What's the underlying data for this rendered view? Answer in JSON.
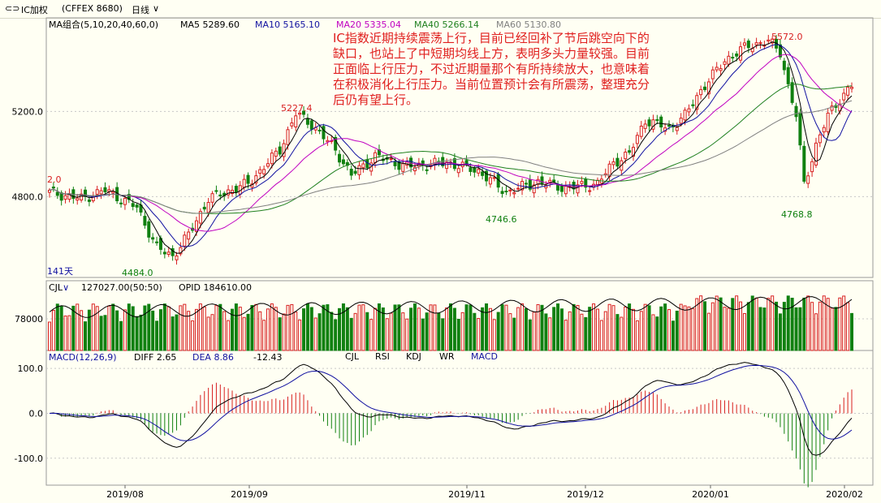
{
  "toolbar": {
    "symbol": "IC加权",
    "code": "(CFFEX 8680)",
    "period": "日线"
  },
  "main_legend": {
    "indicator": "MA组合(5,10,20,40,60,0)",
    "ma5": "MA5 5289.60",
    "ma10": "MA10 5165.10",
    "ma20": "MA20 5335.04",
    "ma40": "MA40 5266.14",
    "ma60": "MA60 5130.80"
  },
  "annotation": "IC指数近期持续震荡上行，目前已经回补了节后跳空向下的缺口，也站上了中短期均线上方，表明多头力量较强。目前正面临上行压力，不过近期量那个有所持续放大，也意味着在积极消化上行压力。当前位置预计会有所震荡，整理充分后仍有望上行。",
  "price_marks": {
    "m1": "5227.4",
    "m2": "5572.0",
    "m3": "4746.6",
    "m4": "4768.8",
    "m5": "4484.0",
    "m6": "2.0",
    "days": "141天"
  },
  "volume_legend": {
    "name": "CJL",
    "vol": "127027.00(50:50)",
    "opid": "OPID 184610.00"
  },
  "macd_legend": {
    "name": "MACD(12,26,9)",
    "diff": "DIFF 2.65",
    "dea": "DEA 8.86",
    "macd": "-12.43"
  },
  "indicator_tabs": [
    "CJL",
    "RSI",
    "KDJ",
    "WR",
    "MACD"
  ],
  "colors": {
    "up": "#d82020",
    "down": "#108010",
    "ma5": "#000000",
    "ma10": "#1010a0",
    "ma20": "#c000c0",
    "ma40": "#208020",
    "ma60": "#808080",
    "background": "#fffff3"
  },
  "chart_data": [
    {
      "type": "candlestick",
      "title": "",
      "yticks": [
        4800.0,
        5200.0
      ],
      "ylim": [
        4420,
        5640
      ],
      "xticks": [
        "2019/08",
        "2019/09",
        "2019/11",
        "2019/12",
        "2020/01",
        "2020/02"
      ],
      "annotated_points": [
        {
          "label": "5227.4",
          "type": "high"
        },
        {
          "label": "5572.0",
          "type": "high"
        },
        {
          "label": "4746.6",
          "type": "low"
        },
        {
          "label": "4768.8",
          "type": "low"
        },
        {
          "label": "4484.0",
          "type": "low"
        }
      ],
      "series": [
        {
          "name": "MA5",
          "last": 5289.6
        },
        {
          "name": "MA10",
          "last": 5165.1
        },
        {
          "name": "MA20",
          "last": 5335.04
        },
        {
          "name": "MA40",
          "last": 5266.14
        },
        {
          "name": "MA60",
          "last": 5130.8
        }
      ]
    },
    {
      "type": "bar",
      "title": "CJL",
      "yticks": [
        78000
      ],
      "last_volume": 127027.0,
      "opid": 184610.0
    },
    {
      "type": "bar",
      "title": "MACD(12,26,9)",
      "yticks": [
        100.0,
        0.0,
        -100.0
      ],
      "ylim": [
        -160,
        140
      ],
      "diff": 2.65,
      "dea": 8.86,
      "macd": -12.43
    }
  ]
}
